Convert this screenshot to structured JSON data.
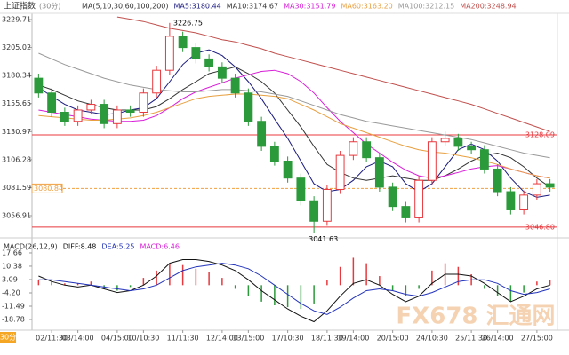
{
  "chart_data": {
    "type": "candlestick",
    "title": "上证指数",
    "period": "(30分)",
    "period_badge": "30分",
    "watermark": "FX678 汇通网",
    "up_color": "#e8383d",
    "down_color": "#2b9a3a",
    "categories": [
      null,
      "02/11:30",
      null,
      "03/14:00",
      null,
      null,
      "04/15:00",
      null,
      "10/10:30",
      null,
      null,
      "11/11:30",
      null,
      null,
      "12/14:00",
      null,
      "13/15:00",
      null,
      null,
      "17/10:30",
      null,
      null,
      "18/11:30",
      null,
      "19/14:00",
      null,
      null,
      "20/15:00",
      null,
      null,
      "24/10:30",
      null,
      null,
      "25/11:30",
      null,
      "26/14:00",
      null,
      null,
      "27/15:00",
      null
    ],
    "open": [
      3178,
      3165,
      3148,
      3140,
      3150,
      3155,
      3138,
      3150,
      3148,
      3165,
      3185,
      3215,
      3205,
      3195,
      3188,
      3178,
      3165,
      3140,
      3118,
      3105,
      3090,
      3070,
      3052,
      3080,
      3110,
      3122,
      3108,
      3082,
      3065,
      3055,
      3088,
      3122,
      3125,
      3118,
      3115,
      3098,
      3078,
      3062,
      3075,
      3085
    ],
    "high": [
      3182,
      3169,
      3152,
      3154,
      3159,
      3159,
      3154,
      3154,
      3169,
      3189,
      3226.75,
      3219,
      3209,
      3199,
      3192,
      3182,
      3169,
      3144,
      3122,
      3109,
      3094,
      3074,
      3084,
      3114,
      3126,
      3126,
      3112,
      3086,
      3069,
      3092,
      3126,
      3131,
      3129,
      3122,
      3119,
      3102,
      3082,
      3079,
      3089,
      3089
    ],
    "low": [
      3161,
      3144,
      3136,
      3136,
      3146,
      3134,
      3134,
      3144,
      3144,
      3161,
      3181,
      3201,
      3191,
      3184,
      3174,
      3161,
      3136,
      3114,
      3101,
      3086,
      3066,
      3041.63,
      3048,
      3076,
      3106,
      3104,
      3078,
      3061,
      3051,
      3051,
      3084,
      3118,
      3114,
      3111,
      3094,
      3074,
      3058,
      3058,
      3071,
      3078
    ],
    "close": [
      3165,
      3148,
      3140,
      3150,
      3155,
      3138,
      3150,
      3148,
      3165,
      3185,
      3215,
      3205,
      3195,
      3188,
      3178,
      3165,
      3140,
      3118,
      3105,
      3090,
      3070,
      3052,
      3080,
      3110,
      3122,
      3108,
      3082,
      3065,
      3055,
      3088,
      3122,
      3125,
      3118,
      3115,
      3098,
      3078,
      3062,
      3075,
      3085,
      3082
    ],
    "ylim": [
      3039.7,
      3235.2
    ],
    "yticks": [
      3229.71,
      3205.02,
      3180.34,
      3155.65,
      3130.97,
      3106.28,
      3081.59,
      3056.91
    ],
    "ma_label": "MA(5,10,30,60,100,200)",
    "series": [
      {
        "name": "MA5:3180.44",
        "color": "#1a1a80",
        "values": [
          3170,
          3162,
          3155,
          3150,
          3148,
          3146,
          3147,
          3150,
          3152,
          3160,
          3175,
          3190,
          3200,
          3203,
          3198,
          3188,
          3175,
          3160,
          3142,
          3125,
          3105,
          3085,
          3078,
          3080,
          3088,
          3100,
          3105,
          3100,
          3085,
          3078,
          3085,
          3100,
          3115,
          3120,
          3115,
          3105,
          3090,
          3078,
          3073,
          3075
        ]
      },
      {
        "name": "MA10:3174.67",
        "color": "#333333",
        "values": [
          3172,
          3168,
          3163,
          3158,
          3155,
          3152,
          3150,
          3150,
          3150,
          3153,
          3160,
          3168,
          3175,
          3182,
          3185,
          3188,
          3182,
          3175,
          3165,
          3150,
          3135,
          3118,
          3102,
          3095,
          3090,
          3088,
          3090,
          3092,
          3090,
          3088,
          3088,
          3092,
          3098,
          3105,
          3110,
          3112,
          3108,
          3100,
          3090,
          3082
        ]
      },
      {
        "name": "MA30:3151.79",
        "color": "#d81ed8",
        "values": [
          3150,
          3148,
          3146,
          3144,
          3142,
          3141,
          3140,
          3140,
          3141,
          3145,
          3152,
          3160,
          3166,
          3170,
          3174,
          3178,
          3181,
          3184,
          3185,
          3182,
          3175,
          3165,
          3152,
          3140,
          3130,
          3120,
          3112,
          3104,
          3097,
          3092,
          3090,
          3092,
          3095,
          3098,
          3100,
          3101,
          3098,
          3095,
          3092,
          3090
        ]
      },
      {
        "name": "MA60:3163.20",
        "color": "#e8a040",
        "values": [
          3145,
          3144,
          3143,
          3142,
          3141,
          3141,
          3142,
          3143,
          3145,
          3148,
          3152,
          3156,
          3160,
          3162,
          3163,
          3164,
          3164,
          3163,
          3162,
          3160,
          3155,
          3150,
          3144,
          3138,
          3134,
          3130,
          3126,
          3122,
          3118,
          3115,
          3113,
          3112,
          3110,
          3108,
          3105,
          3102,
          3098,
          3095,
          3092,
          3090
        ]
      },
      {
        "name": "MA100:3212.15",
        "color": "#999999",
        "values": [
          3200,
          3195,
          3190,
          3186,
          3182,
          3178,
          3175,
          3172,
          3170,
          3168,
          3167,
          3166,
          3166,
          3167,
          3168,
          3168,
          3167,
          3166,
          3164,
          3162,
          3158,
          3154,
          3150,
          3146,
          3143,
          3140,
          3138,
          3136,
          3134,
          3132,
          3130,
          3128,
          3126,
          3124,
          3121,
          3118,
          3115,
          3112,
          3110,
          3108
        ]
      },
      {
        "name": "MA200:3248.94",
        "color": "#c0504d",
        "values": [
          null,
          null,
          null,
          null,
          null,
          null,
          3232,
          3230,
          3228,
          3225,
          3222,
          3220,
          3218,
          3215,
          3212,
          3210,
          3207,
          3204,
          3200,
          3197,
          3194,
          3191,
          3188,
          3185,
          3182,
          3179,
          3176,
          3173,
          3170,
          3167,
          3164,
          3161,
          3158,
          3155,
          3151,
          3147,
          3143,
          3139,
          3135,
          3131
        ]
      }
    ],
    "hlines": [
      {
        "value": 3128.09,
        "label": "3128.09",
        "color": "#e8383d",
        "side": "right"
      },
      {
        "value": 3080.84,
        "label": "3080.84",
        "color": "#f0a040",
        "side": "left",
        "dashed": true
      },
      {
        "value": 3046.8,
        "label": "3046.80",
        "color": "#e8383d",
        "side": "right"
      }
    ],
    "macd": {
      "label": "MACD(26,12,9)",
      "ylim": [
        -24.6,
        22.5
      ],
      "yticks": [
        17.66,
        10.38,
        3.09,
        {
          "value": -4.2,
          "label": "-4.20"
        },
        -11.49,
        -18.78
      ],
      "series": [
        {
          "name": "DIFF:8.48",
          "color": "#111111",
          "values": [
            5,
            2,
            0,
            -1,
            0,
            -2,
            -4,
            -3,
            0,
            5,
            12,
            14,
            14,
            13,
            11,
            8,
            3,
            -3,
            -8,
            -13,
            -17,
            -20,
            -14,
            -6,
            1,
            3,
            0,
            -5,
            -9,
            -6,
            1,
            6,
            6,
            5,
            1,
            -4,
            -9,
            -6,
            -2,
            0
          ]
        },
        {
          "name": "DEA:5.25",
          "color": "#2233bb",
          "values": [
            3,
            3,
            2,
            1,
            0,
            -1,
            -2,
            -3,
            -2,
            0,
            4,
            8,
            10,
            11,
            12,
            11,
            9,
            5,
            0,
            -5,
            -10,
            -14,
            -16,
            -12,
            -7,
            -3,
            -2,
            -3,
            -5,
            -6,
            -4,
            -1,
            2,
            3,
            3,
            1,
            -3,
            -5,
            -4,
            -2
          ]
        }
      ],
      "histogram": {
        "name": "MACD:6.46",
        "color": "#d81ed8",
        "values": [
          3,
          2,
          1,
          1,
          2,
          -2,
          -3,
          -1,
          4,
          8,
          12,
          11,
          9,
          7,
          4,
          -2,
          -6,
          -9,
          -11,
          -12,
          -13,
          -10,
          3,
          10,
          15,
          12,
          5,
          -3,
          -6,
          -2,
          8,
          12,
          10,
          6,
          -2,
          -6,
          -9,
          -4,
          2,
          3
        ]
      }
    }
  }
}
